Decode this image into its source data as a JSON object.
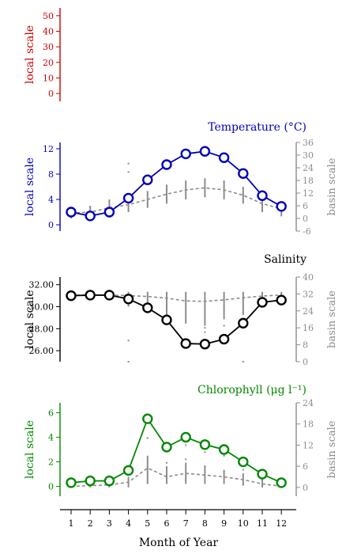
{
  "chart_data": [
    {
      "type": "line",
      "title": "",
      "color": "#cc0000",
      "ylabel_left": "local scale",
      "ylabel_right": "",
      "yticks_left": [
        "0",
        "10",
        "20",
        "30",
        "40",
        "50"
      ],
      "yticks_left_values": [
        0,
        10,
        20,
        30,
        40,
        50
      ],
      "ylim_left": [
        -5,
        55
      ],
      "series": []
    },
    {
      "type": "line",
      "title": "Temperature (°C)",
      "color": "#0000bb",
      "ylabel_left": "local scale",
      "ylabel_right": "basin scale",
      "yticks_left": [
        "0",
        "4",
        "8",
        "12"
      ],
      "yticks_left_values": [
        0,
        4,
        8,
        12
      ],
      "ylim_left": [
        -1,
        13
      ],
      "yticks_right": [
        "-6",
        "0",
        "6",
        "12",
        "18",
        "24",
        "30",
        "36"
      ],
      "yticks_right_values": [
        -6,
        0,
        6,
        12,
        18,
        24,
        30,
        36
      ],
      "ylim_right": [
        -6,
        36
      ],
      "x": [
        1,
        2,
        3,
        4,
        5,
        6,
        7,
        8,
        9,
        10,
        11,
        12
      ],
      "local_values": [
        2.0,
        1.4,
        2.0,
        4.2,
        7.1,
        9.5,
        11.2,
        11.6,
        10.6,
        8.1,
        4.6,
        2.9
      ],
      "basin_values": [
        2.5,
        3.0,
        5.0,
        6.5,
        9.0,
        11.5,
        13.5,
        14.5,
        13.5,
        11.0,
        7.0,
        4.5
      ],
      "basin_ranges": [
        [
          0,
          5
        ],
        [
          0,
          6
        ],
        [
          1,
          9
        ],
        [
          3,
          10
        ],
        [
          5,
          13
        ],
        [
          7,
          16
        ],
        [
          9,
          18
        ],
        [
          10,
          19
        ],
        [
          9,
          18
        ],
        [
          7,
          15
        ],
        [
          3,
          11
        ],
        [
          1,
          8
        ]
      ],
      "outliers": [
        [
          4,
          26
        ],
        [
          4,
          22
        ],
        [
          10,
          22
        ]
      ]
    },
    {
      "type": "line",
      "title": "Salinity",
      "color": "#000000",
      "ylabel_left": "local scale",
      "ylabel_right": "basin scale",
      "yticks_left": [
        "26.00",
        "28.00",
        "30.00",
        "32.00"
      ],
      "yticks_left_values": [
        26,
        28,
        30,
        32
      ],
      "ylim_left": [
        25,
        32.7
      ],
      "yticks_right": [
        "0",
        "8",
        "16",
        "24",
        "32",
        "40"
      ],
      "yticks_right_values": [
        0,
        8,
        16,
        24,
        32,
        40
      ],
      "ylim_right": [
        0,
        40
      ],
      "x": [
        1,
        2,
        3,
        4,
        5,
        6,
        7,
        8,
        9,
        10,
        11,
        12
      ],
      "local_values": [
        31.0,
        31.05,
        31.05,
        30.7,
        29.9,
        28.8,
        26.65,
        26.6,
        27.05,
        28.5,
        30.4,
        30.6
      ],
      "basin_values": [
        31.5,
        31.5,
        31.5,
        31.2,
        30.8,
        30.0,
        28.7,
        28.5,
        29.2,
        30.2,
        31.0,
        31.5
      ],
      "basin_ranges": [
        [
          29,
          33
        ],
        [
          29,
          33
        ],
        [
          29,
          33
        ],
        [
          26,
          33
        ],
        [
          24,
          33
        ],
        [
          22,
          33
        ],
        [
          18,
          33
        ],
        [
          17,
          33
        ],
        [
          20,
          33
        ],
        [
          22,
          33
        ],
        [
          26,
          33
        ],
        [
          29,
          33
        ]
      ],
      "outliers": [
        [
          4,
          10
        ],
        [
          4,
          0
        ],
        [
          8,
          14
        ],
        [
          8,
          16
        ],
        [
          9,
          17
        ],
        [
          10,
          0
        ]
      ]
    },
    {
      "type": "line",
      "title": "Chlorophyll (μg l⁻¹)",
      "color": "#008800",
      "ylabel_left": "local scale",
      "ylabel_right": "basin scale",
      "yticks_left": [
        "0",
        "2",
        "4",
        "6"
      ],
      "yticks_left_values": [
        0,
        2,
        4,
        6
      ],
      "ylim_left": [
        -0.8,
        6.8
      ],
      "yticks_right": [
        "0",
        "6",
        "12",
        "18",
        "24"
      ],
      "yticks_right_values": [
        0,
        6,
        12,
        18,
        24
      ],
      "ylim_right": [
        -2.5,
        24
      ],
      "x": [
        1,
        2,
        3,
        4,
        5,
        6,
        7,
        8,
        9,
        10,
        11,
        12
      ],
      "local_values": [
        0.3,
        0.45,
        0.45,
        1.3,
        5.5,
        3.2,
        4.0,
        3.4,
        3.0,
        2.0,
        1.0,
        0.3
      ],
      "basin_values": [
        0.3,
        0.5,
        0.7,
        1.5,
        5.5,
        3.0,
        4.0,
        3.5,
        3.0,
        2.2,
        1.0,
        0.3
      ],
      "basin_ranges": [
        [
          0,
          1
        ],
        [
          0,
          1.2
        ],
        [
          0,
          1.5
        ],
        [
          0,
          3
        ],
        [
          1,
          9
        ],
        [
          1,
          6
        ],
        [
          1,
          7
        ],
        [
          1,
          6
        ],
        [
          1,
          5
        ],
        [
          0.5,
          4
        ],
        [
          0,
          2.5
        ],
        [
          0,
          1
        ]
      ],
      "outliers": [
        [
          5,
          14
        ],
        [
          6,
          7
        ],
        [
          7,
          8
        ],
        [
          7,
          12
        ],
        [
          8,
          6
        ],
        [
          8,
          10
        ],
        [
          9,
          9
        ],
        [
          10,
          5
        ]
      ]
    }
  ],
  "xaxis": {
    "label": "Month of Year",
    "ticks": [
      "1",
      "2",
      "3",
      "4",
      "5",
      "6",
      "7",
      "8",
      "9",
      "10",
      "11",
      "12"
    ]
  }
}
